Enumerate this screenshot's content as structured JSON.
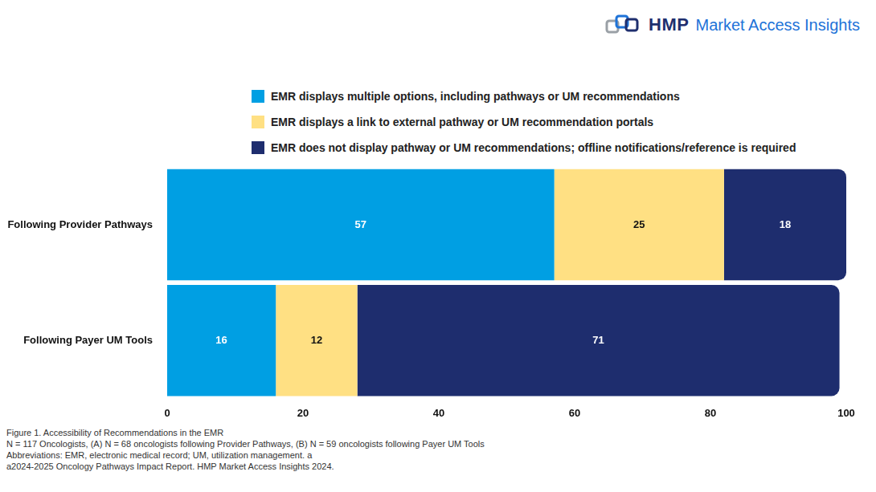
{
  "chart_data": {
    "type": "bar",
    "orientation": "horizontal",
    "stacked": true,
    "data_labels": true,
    "grid": false,
    "legend": "top",
    "categories": [
      "Following Provider Pathways",
      "Following Payer UM Tools"
    ],
    "series": [
      {
        "name": "EMR displays multiple options, including pathways or UM recommendations",
        "color": "#009fe3",
        "values": [
          57,
          16
        ]
      },
      {
        "name": "EMR displays a link to external pathway or UM recommendation portals",
        "color": "#ffe083",
        "values": [
          25,
          12
        ]
      },
      {
        "name": "EMR does not display pathway or UM recommendations; offline notifications/reference is required",
        "color": "#1e2d6e",
        "values": [
          18,
          71
        ]
      }
    ],
    "xlim": [
      0,
      100
    ],
    "xticks": [
      0,
      20,
      40,
      60,
      80,
      100
    ]
  },
  "logo": {
    "brand": "HMP",
    "text": "Market Access Insights"
  },
  "footer": {
    "notes": [
      "Figure 1. Accessibility of Recommendations in the EMR",
      "N = 117 Oncologists, (A) N = 68 oncologists following Provider Pathways, (B) N = 59 oncologists following Payer UM Tools",
      "Abbreviations: EMR, electronic medical record; UM, utilization management. a",
      "a2024-2025 Oncology Pathways Impact Report. HMP Market Access Insights 2024."
    ]
  }
}
